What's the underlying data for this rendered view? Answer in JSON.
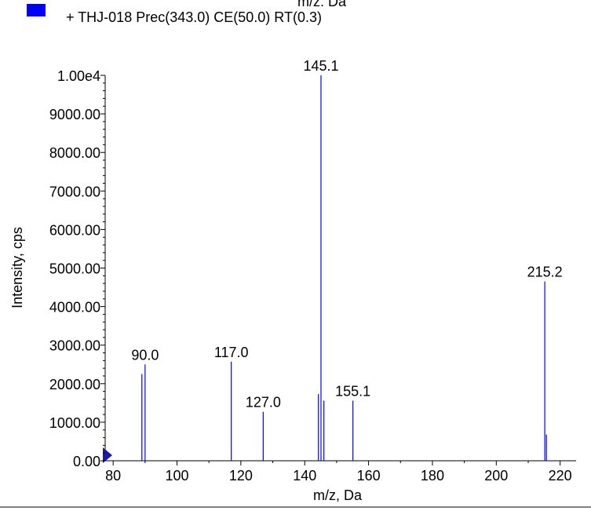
{
  "legend": {
    "label": "+ THJ-018 Prec(343.0) CE(50.0) RT(0.3)",
    "swatch_color": "#0000ff"
  },
  "top_clipped_text": "m/z, Da",
  "chart_data": {
    "type": "bar",
    "title": "",
    "xlabel": "m/z, Da",
    "ylabel": "Intensity, cps",
    "xlim": [
      77.5,
      225
    ],
    "ylim": [
      0,
      10000
    ],
    "x_ticks": [
      80,
      100,
      120,
      140,
      160,
      180,
      200,
      220
    ],
    "x_tick_labels": [
      "80",
      "100",
      "120",
      "140",
      "160",
      "180",
      "200",
      "220"
    ],
    "y_ticks": [
      0,
      1000,
      2000,
      3000,
      4000,
      5000,
      6000,
      7000,
      8000,
      9000,
      10000
    ],
    "y_tick_labels": [
      "0.00",
      "1000.00",
      "2000.00",
      "3000.00",
      "4000.00",
      "5000.00",
      "6000.00",
      "7000.00",
      "8000.00",
      "9000.00",
      "1.00e4"
    ],
    "series": [
      {
        "color": "#0000ff",
        "peaks": [
          {
            "mz": 89.0,
            "intensity": 2250
          },
          {
            "mz": 90.0,
            "intensity": 2500
          },
          {
            "mz": 117.0,
            "intensity": 2570
          },
          {
            "mz": 127.0,
            "intensity": 1270
          },
          {
            "mz": 144.3,
            "intensity": 1730
          },
          {
            "mz": 145.1,
            "intensity": 10000
          },
          {
            "mz": 146.0,
            "intensity": 1560
          },
          {
            "mz": 155.1,
            "intensity": 1560
          },
          {
            "mz": 215.2,
            "intensity": 4650
          },
          {
            "mz": 215.7,
            "intensity": 680
          }
        ]
      }
    ],
    "annotations": [
      {
        "text": "90.0",
        "mz": 90.0,
        "intensity": 2500
      },
      {
        "text": "117.0",
        "mz": 117.0,
        "intensity": 2570
      },
      {
        "text": "127.0",
        "mz": 127.0,
        "intensity": 1270
      },
      {
        "text": "145.1",
        "mz": 145.1,
        "intensity": 10000
      },
      {
        "text": "155.1",
        "mz": 155.1,
        "intensity": 1560
      },
      {
        "text": "215.2",
        "mz": 215.2,
        "intensity": 4650
      }
    ],
    "grid": false,
    "legend_position": "top-left"
  }
}
